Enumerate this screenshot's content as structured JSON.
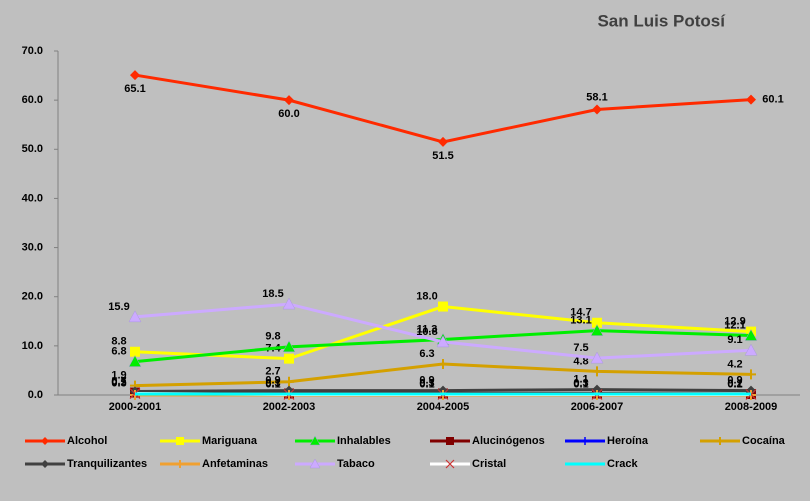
{
  "chart_data": {
    "type": "line",
    "title": "San Luis Potosí",
    "categories": [
      "2000-2001",
      "2002-2003",
      "2004-2005",
      "2006-2007",
      "2008-2009"
    ],
    "ylim": [
      0,
      70
    ],
    "yticks": [
      {
        "value": 0,
        "label": "0.0"
      },
      {
        "value": 10,
        "label": "10.0"
      },
      {
        "value": 20,
        "label": "20.0"
      },
      {
        "value": 30,
        "label": "30.0"
      },
      {
        "value": 40,
        "label": "40.0"
      },
      {
        "value": 50,
        "label": "50.0"
      },
      {
        "value": 60,
        "label": "60.0"
      },
      {
        "value": 70,
        "label": "70.0"
      }
    ],
    "series": [
      {
        "name": "Alcohol",
        "color": "#ff2a00",
        "marker": "diamond",
        "values": [
          65.1,
          60.0,
          51.5,
          58.1,
          60.1
        ],
        "value_labels": [
          "65.1",
          "60.0",
          "51.5",
          "58.1",
          "60.1"
        ]
      },
      {
        "name": "Mariguana",
        "color": "#ffff00",
        "marker": "square",
        "values": [
          8.8,
          7.4,
          18.0,
          14.7,
          12.9
        ],
        "value_labels": [
          "8.8",
          "7.4",
          "18.0",
          "14.7",
          "12.9"
        ]
      },
      {
        "name": "Inhalables",
        "color": "#00ee00",
        "marker": "triangle",
        "values": [
          6.8,
          9.8,
          11.3,
          13.1,
          12.1
        ],
        "value_labels": [
          "6.8",
          "9.8",
          "11.3",
          "13.1",
          "12.1"
        ]
      },
      {
        "name": "Alucinógenos",
        "color": "#800000",
        "marker": "square",
        "values": [
          0.5,
          0.3,
          0.3,
          0.3,
          0.2
        ],
        "value_labels": [
          "0.5",
          "0.3",
          "0.3",
          "0.3",
          "0.2"
        ]
      },
      {
        "name": "Heroína",
        "color": "#0000ff",
        "marker": "cross",
        "values": [
          0,
          0,
          0,
          0,
          0
        ]
      },
      {
        "name": "Cocaína",
        "color": "#d4a000",
        "marker": "plus",
        "values": [
          1.9,
          2.7,
          6.3,
          4.8,
          4.2
        ],
        "value_labels": [
          "1.9",
          "2.7",
          "6.3",
          "4.8",
          "4.2"
        ]
      },
      {
        "name": "Tranquilizantes",
        "color": "#404040",
        "marker": "diamond",
        "values": [
          0.7,
          0.9,
          0.9,
          1.1,
          0.9
        ],
        "value_labels": [
          "0.7",
          "0.9",
          "0.9",
          "1.1",
          "0.9"
        ]
      },
      {
        "name": "Anfetaminas",
        "color": "#f0a030",
        "marker": "plus",
        "values": [
          0,
          0,
          0,
          0,
          0
        ]
      },
      {
        "name": "Tabaco",
        "color": "#ccaaff",
        "marker": "triangle",
        "values": [
          15.9,
          18.5,
          10.8,
          7.5,
          9.1
        ],
        "value_labels": [
          "15.9",
          "18.5",
          "10.8",
          "7.5",
          "9.1"
        ]
      },
      {
        "name": "Cristal",
        "color": "#ffffff",
        "marker": "x",
        "values": [
          0.3,
          0.1,
          0.1,
          0.1,
          0.1
        ],
        "value_labels": [
          "0.3",
          "0.1",
          "0.1",
          "0.1",
          "0.1"
        ]
      },
      {
        "name": "Crack",
        "color": "#00ffff",
        "marker": "none",
        "values": [
          0.2,
          0.2,
          0.2,
          0.2,
          0.2
        ]
      }
    ]
  }
}
